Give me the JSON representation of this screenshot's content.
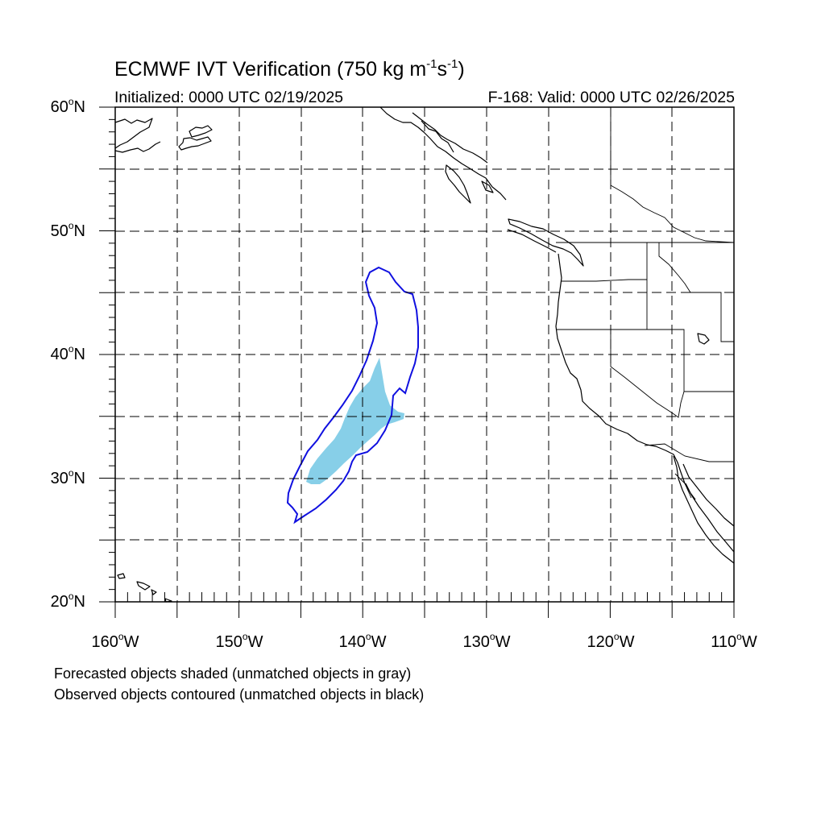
{
  "figure": {
    "title_main": "ECMWF IVT Verification (750 kg m",
    "title_exp1": "-1",
    "title_mid": "s",
    "title_exp2": "-1",
    "title_end": ")",
    "init_text": "Initialized: 0000 UTC 02/19/2025",
    "valid_text": "F-168: Valid: 0000 UTC 02/26/2025",
    "legend_forecast": "Forecasted objects shaded (unmatched objects in gray)",
    "legend_observed": "Observed objects contoured (unmatched objects in black)"
  },
  "axes": {
    "lat_labels": [
      {
        "value": "60",
        "suffix": "N"
      },
      {
        "value": "50",
        "suffix": "N"
      },
      {
        "value": "40",
        "suffix": "N"
      },
      {
        "value": "30",
        "suffix": "N"
      },
      {
        "value": "20",
        "suffix": "N"
      }
    ],
    "lon_labels": [
      {
        "value": "160",
        "suffix": "W"
      },
      {
        "value": "150",
        "suffix": "W"
      },
      {
        "value": "140",
        "suffix": "W"
      },
      {
        "value": "130",
        "suffix": "W"
      },
      {
        "value": "120",
        "suffix": "W"
      },
      {
        "value": "110",
        "suffix": "W"
      }
    ],
    "lon_range": [
      -160,
      -110
    ],
    "lat_range": [
      20,
      60
    ],
    "grid_dashed": true
  },
  "colors": {
    "forecast_fill": "#87cfe8",
    "observed_contour": "#1010e0",
    "coastline": "#000000"
  }
}
